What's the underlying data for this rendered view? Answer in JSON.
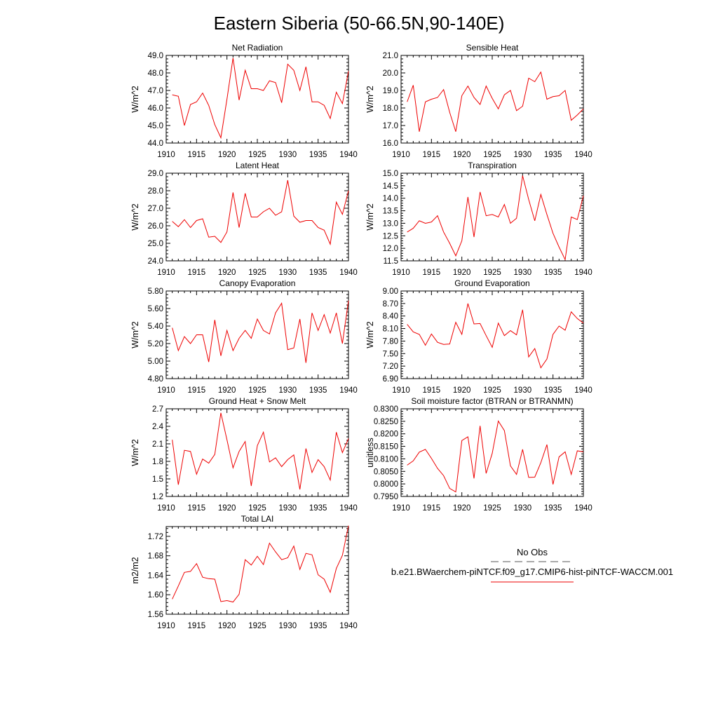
{
  "figure": {
    "title": "Eastern Siberia (50-66.5N,90-140E)"
  },
  "legend": {
    "obs_label": "No Obs",
    "obs_color": "#555555",
    "model_label": "b.e21.BWaerchem-piNTCF.f09_g17.CMIP6-hist-piNTCF-WACCM.001",
    "model_color": "#ee0000"
  },
  "chart_data": [
    {
      "type": "line",
      "title": "Net Radiation",
      "ylabel": "W/m^2",
      "xlim": [
        1910,
        1940
      ],
      "ylim": [
        44.0,
        49.0
      ],
      "xticks": [
        1910,
        1915,
        1920,
        1925,
        1930,
        1935,
        1940
      ],
      "xtick_labels": [
        "1910",
        "1915",
        "1920",
        "1925",
        "1930",
        "1935",
        "1940"
      ],
      "yticks": [
        44.0,
        45.0,
        46.0,
        47.0,
        48.0,
        49.0
      ],
      "ytick_labels": [
        "44.0",
        "45.0",
        "46.0",
        "47.0",
        "48.0",
        "49.0"
      ],
      "x": [
        1911,
        1912,
        1913,
        1914,
        1915,
        1916,
        1917,
        1918,
        1919,
        1920,
        1921,
        1922,
        1923,
        1924,
        1925,
        1926,
        1927,
        1928,
        1929,
        1930,
        1931,
        1932,
        1933,
        1934,
        1935,
        1936,
        1937,
        1938,
        1939,
        1940
      ],
      "series": [
        {
          "values": [
            46.75,
            46.67,
            45.0,
            46.2,
            46.35,
            46.85,
            46.15,
            45.05,
            44.3,
            46.5,
            48.85,
            46.45,
            48.15,
            47.1,
            47.1,
            47.0,
            47.55,
            47.45,
            46.3,
            48.5,
            48.15,
            47.0,
            48.35,
            46.35,
            46.35,
            46.15,
            45.4,
            46.9,
            46.25,
            48.1
          ]
        }
      ]
    },
    {
      "type": "line",
      "title": "Sensible Heat",
      "ylabel": "W/m^2",
      "xlim": [
        1910,
        1940
      ],
      "ylim": [
        16.0,
        21.0
      ],
      "xticks": [
        1910,
        1915,
        1920,
        1925,
        1930,
        1935,
        1940
      ],
      "xtick_labels": [
        "1910",
        "1915",
        "1920",
        "1925",
        "1930",
        "1935",
        "1940"
      ],
      "yticks": [
        16.0,
        17.0,
        18.0,
        19.0,
        20.0,
        21.0
      ],
      "ytick_labels": [
        "16.0",
        "17.0",
        "18.0",
        "19.0",
        "20.0",
        "21.0"
      ],
      "x": [
        1911,
        1912,
        1913,
        1914,
        1915,
        1916,
        1917,
        1918,
        1919,
        1920,
        1921,
        1922,
        1923,
        1924,
        1925,
        1926,
        1927,
        1928,
        1929,
        1930,
        1931,
        1932,
        1933,
        1934,
        1935,
        1936,
        1937,
        1938,
        1939,
        1940
      ],
      "series": [
        {
          "values": [
            18.35,
            19.3,
            16.65,
            18.35,
            18.5,
            18.6,
            19.05,
            17.75,
            16.65,
            18.7,
            19.25,
            18.6,
            18.2,
            19.25,
            18.55,
            17.95,
            18.75,
            19.0,
            17.85,
            18.1,
            19.7,
            19.5,
            20.05,
            18.5,
            18.65,
            18.7,
            19.0,
            17.3,
            17.6,
            17.95
          ]
        }
      ]
    },
    {
      "type": "line",
      "title": "Latent Heat",
      "ylabel": "W/m^2",
      "xlim": [
        1910,
        1940
      ],
      "ylim": [
        24.0,
        29.0
      ],
      "xticks": [
        1910,
        1915,
        1920,
        1925,
        1930,
        1935,
        1940
      ],
      "xtick_labels": [
        "1910",
        "1915",
        "1920",
        "1925",
        "1930",
        "1935",
        "1940"
      ],
      "yticks": [
        24.0,
        25.0,
        26.0,
        27.0,
        28.0,
        29.0
      ],
      "ytick_labels": [
        "24.0",
        "25.0",
        "26.0",
        "27.0",
        "28.0",
        "29.0"
      ],
      "x": [
        1911,
        1912,
        1913,
        1914,
        1915,
        1916,
        1917,
        1918,
        1919,
        1920,
        1921,
        1922,
        1923,
        1924,
        1925,
        1926,
        1927,
        1928,
        1929,
        1930,
        1931,
        1932,
        1933,
        1934,
        1935,
        1936,
        1937,
        1938,
        1939,
        1940
      ],
      "series": [
        {
          "values": [
            26.25,
            25.95,
            26.35,
            25.9,
            26.3,
            26.4,
            25.35,
            25.4,
            25.05,
            25.65,
            27.9,
            25.9,
            27.85,
            26.5,
            26.5,
            26.8,
            27.0,
            26.6,
            26.8,
            28.6,
            26.55,
            26.2,
            26.3,
            26.3,
            25.9,
            25.75,
            24.95,
            27.35,
            26.65,
            28.0
          ]
        }
      ]
    },
    {
      "type": "line",
      "title": "Transpiration",
      "ylabel": "W/m^2",
      "xlim": [
        1910,
        1940
      ],
      "ylim": [
        11.5,
        15.0
      ],
      "xticks": [
        1910,
        1915,
        1920,
        1925,
        1930,
        1935,
        1940
      ],
      "xtick_labels": [
        "1910",
        "1915",
        "1920",
        "1925",
        "1930",
        "1935",
        "1940"
      ],
      "yticks": [
        11.5,
        12.0,
        12.5,
        13.0,
        13.5,
        14.0,
        14.5,
        15.0
      ],
      "ytick_labels": [
        "11.5",
        "12.0",
        "12.5",
        "13.0",
        "13.5",
        "14.0",
        "14.5",
        "15.0"
      ],
      "x": [
        1911,
        1912,
        1913,
        1914,
        1915,
        1916,
        1917,
        1918,
        1919,
        1920,
        1921,
        1922,
        1923,
        1924,
        1925,
        1926,
        1927,
        1928,
        1929,
        1930,
        1931,
        1932,
        1933,
        1934,
        1935,
        1936,
        1937,
        1938,
        1939,
        1940
      ],
      "series": [
        {
          "values": [
            12.65,
            12.8,
            13.1,
            13.0,
            13.05,
            13.3,
            12.65,
            12.2,
            11.7,
            12.3,
            14.05,
            12.45,
            14.25,
            13.3,
            13.35,
            13.25,
            13.75,
            13.0,
            13.2,
            14.9,
            13.95,
            13.1,
            14.15,
            13.35,
            12.6,
            12.05,
            11.55,
            13.25,
            13.15,
            14.1
          ]
        }
      ]
    },
    {
      "type": "line",
      "title": "Canopy Evaporation",
      "ylabel": "W/m^2",
      "xlim": [
        1910,
        1940
      ],
      "ylim": [
        4.8,
        5.8
      ],
      "xticks": [
        1910,
        1915,
        1920,
        1925,
        1930,
        1935,
        1940
      ],
      "xtick_labels": [
        "1910",
        "1915",
        "1920",
        "1925",
        "1930",
        "1935",
        "1940"
      ],
      "yticks": [
        4.8,
        5.0,
        5.2,
        5.4,
        5.6,
        5.8
      ],
      "ytick_labels": [
        "4.80",
        "5.00",
        "5.20",
        "5.40",
        "5.60",
        "5.80"
      ],
      "x": [
        1911,
        1912,
        1913,
        1914,
        1915,
        1916,
        1917,
        1918,
        1919,
        1920,
        1921,
        1922,
        1923,
        1924,
        1925,
        1926,
        1927,
        1928,
        1929,
        1930,
        1931,
        1932,
        1933,
        1934,
        1935,
        1936,
        1937,
        1938,
        1939,
        1940
      ],
      "series": [
        {
          "values": [
            5.38,
            5.12,
            5.28,
            5.2,
            5.3,
            5.3,
            4.99,
            5.47,
            5.06,
            5.35,
            5.12,
            5.26,
            5.35,
            5.26,
            5.48,
            5.35,
            5.31,
            5.55,
            5.66,
            5.13,
            5.15,
            5.48,
            4.98,
            5.55,
            5.35,
            5.53,
            5.32,
            5.55,
            5.2,
            5.69
          ]
        }
      ]
    },
    {
      "type": "line",
      "title": "Ground Evaporation",
      "ylabel": "W/m^2",
      "xlim": [
        1910,
        1940
      ],
      "ylim": [
        6.9,
        9.0
      ],
      "xticks": [
        1910,
        1915,
        1920,
        1925,
        1930,
        1935,
        1940
      ],
      "xtick_labels": [
        "1910",
        "1915",
        "1920",
        "1925",
        "1930",
        "1935",
        "1940"
      ],
      "yticks": [
        6.9,
        7.2,
        7.5,
        7.8,
        8.1,
        8.4,
        8.7,
        9.0
      ],
      "ytick_labels": [
        "6.90",
        "7.20",
        "7.50",
        "7.80",
        "8.10",
        "8.40",
        "8.70",
        "9.00"
      ],
      "x": [
        1911,
        1912,
        1913,
        1914,
        1915,
        1916,
        1917,
        1918,
        1919,
        1920,
        1921,
        1922,
        1923,
        1924,
        1925,
        1926,
        1927,
        1928,
        1929,
        1930,
        1931,
        1932,
        1933,
        1934,
        1935,
        1936,
        1937,
        1938,
        1939,
        1940
      ],
      "series": [
        {
          "values": [
            8.2,
            8.02,
            7.96,
            7.7,
            7.97,
            7.77,
            7.72,
            7.73,
            8.25,
            7.96,
            8.7,
            8.21,
            8.22,
            7.93,
            7.65,
            8.23,
            7.93,
            8.05,
            7.95,
            8.55,
            7.42,
            7.62,
            7.16,
            7.37,
            7.96,
            8.16,
            8.06,
            8.5,
            8.34,
            8.23
          ]
        }
      ]
    },
    {
      "type": "line",
      "title": "Ground Heat + Snow Melt",
      "ylabel": "W/m^2",
      "xlim": [
        1910,
        1940
      ],
      "ylim": [
        1.2,
        2.7
      ],
      "xticks": [
        1910,
        1915,
        1920,
        1925,
        1930,
        1935,
        1940
      ],
      "xtick_labels": [
        "1910",
        "1915",
        "1920",
        "1925",
        "1930",
        "1935",
        "1940"
      ],
      "yticks": [
        1.2,
        1.5,
        1.8,
        2.1,
        2.4,
        2.7
      ],
      "ytick_labels": [
        "1.2",
        "1.5",
        "1.8",
        "2.1",
        "2.4",
        "2.7"
      ],
      "x": [
        1911,
        1912,
        1913,
        1914,
        1915,
        1916,
        1917,
        1918,
        1919,
        1920,
        1921,
        1922,
        1923,
        1924,
        1925,
        1926,
        1927,
        1928,
        1929,
        1930,
        1931,
        1932,
        1933,
        1934,
        1935,
        1936,
        1937,
        1938,
        1939,
        1940
      ],
      "series": [
        {
          "values": [
            2.17,
            1.4,
            1.99,
            1.97,
            1.58,
            1.84,
            1.77,
            1.92,
            2.63,
            2.17,
            1.69,
            1.97,
            2.14,
            1.38,
            2.07,
            2.3,
            1.79,
            1.86,
            1.71,
            1.83,
            1.91,
            1.32,
            2.02,
            1.61,
            1.83,
            1.71,
            1.48,
            2.3,
            1.95,
            2.19
          ]
        }
      ]
    },
    {
      "type": "line",
      "title": "Soil moisture factor (BTRAN or BTRANMN)",
      "ylabel": "unitless",
      "xlim": [
        1910,
        1940
      ],
      "ylim": [
        0.795,
        0.83
      ],
      "xticks": [
        1910,
        1915,
        1920,
        1925,
        1930,
        1935,
        1940
      ],
      "xtick_labels": [
        "1910",
        "1915",
        "1920",
        "1925",
        "1930",
        "1935",
        "1940"
      ],
      "yticks": [
        0.795,
        0.8,
        0.805,
        0.81,
        0.815,
        0.82,
        0.825,
        0.83
      ],
      "ytick_labels": [
        "0.7950",
        "0.8000",
        "0.8050",
        "0.8100",
        "0.8150",
        "0.8200",
        "0.8250",
        "0.8300"
      ],
      "x": [
        1911,
        1912,
        1913,
        1914,
        1915,
        1916,
        1917,
        1918,
        1919,
        1920,
        1921,
        1922,
        1923,
        1924,
        1925,
        1926,
        1927,
        1928,
        1929,
        1930,
        1931,
        1932,
        1933,
        1934,
        1935,
        1936,
        1937,
        1938,
        1939,
        1940
      ],
      "series": [
        {
          "values": [
            0.8075,
            0.8092,
            0.8127,
            0.8138,
            0.8102,
            0.8062,
            0.8033,
            0.7982,
            0.7968,
            0.8173,
            0.8188,
            0.8022,
            0.8232,
            0.8042,
            0.8122,
            0.8251,
            0.8213,
            0.8072,
            0.8038,
            0.8138,
            0.8026,
            0.8027,
            0.8085,
            0.8157,
            0.7998,
            0.8108,
            0.8128,
            0.8038,
            0.8132,
            0.8128
          ]
        }
      ]
    },
    {
      "type": "line",
      "title": "Total LAI",
      "ylabel": "m2/m2",
      "xlim": [
        1910,
        1940
      ],
      "ylim": [
        1.56,
        1.74
      ],
      "xticks": [
        1910,
        1915,
        1920,
        1925,
        1930,
        1935,
        1940
      ],
      "xtick_labels": [
        "1910",
        "1915",
        "1920",
        "1925",
        "1930",
        "1935",
        "1940"
      ],
      "yticks": [
        1.56,
        1.6,
        1.64,
        1.68,
        1.72
      ],
      "ytick_labels": [
        "1.56",
        "1.60",
        "1.64",
        "1.68",
        "1.72"
      ],
      "x": [
        1911,
        1912,
        1913,
        1914,
        1915,
        1916,
        1917,
        1918,
        1919,
        1920,
        1921,
        1922,
        1923,
        1924,
        1925,
        1926,
        1927,
        1928,
        1929,
        1930,
        1931,
        1932,
        1933,
        1934,
        1935,
        1936,
        1937,
        1938,
        1939,
        1940
      ],
      "series": [
        {
          "values": [
            1.591,
            1.618,
            1.646,
            1.648,
            1.664,
            1.636,
            1.633,
            1.632,
            1.586,
            1.588,
            1.585,
            1.601,
            1.672,
            1.661,
            1.679,
            1.662,
            1.706,
            1.688,
            1.672,
            1.676,
            1.7,
            1.652,
            1.685,
            1.682,
            1.641,
            1.632,
            1.605,
            1.654,
            1.681,
            1.742
          ]
        }
      ]
    }
  ]
}
